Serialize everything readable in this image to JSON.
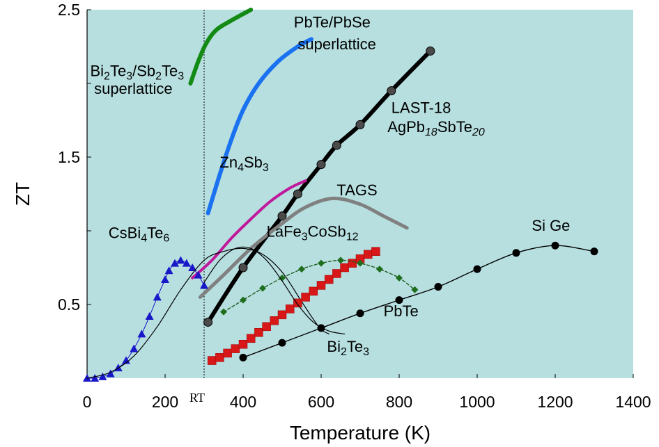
{
  "chart_data": {
    "type": "line",
    "title": "",
    "xlabel": "Temperature (K)",
    "ylabel": "ZT",
    "xlim": [
      0,
      1400
    ],
    "ylim": [
      0,
      2.5
    ],
    "xticks": [
      "0",
      "200",
      "400",
      "600",
      "800",
      "1000",
      "1200",
      "1400"
    ],
    "yticks": [
      "0.5",
      "1.5",
      "2.5"
    ],
    "rt_label": "RT",
    "rt_x": 300,
    "grid": false,
    "background_color": "#b7dfe0",
    "series": [
      {
        "name": "Bi2Te3/Sb2Te3 superlattice",
        "color": "#138a13",
        "style": "line",
        "width": 6,
        "x": [
          265,
          285,
          305,
          330,
          365,
          420
        ],
        "y": [
          2.0,
          2.15,
          2.27,
          2.36,
          2.42,
          2.5
        ]
      },
      {
        "name": "PbTe/PbSe superlattice",
        "color": "#1a72f0",
        "style": "line",
        "width": 6,
        "x": [
          310,
          340,
          370,
          400,
          440,
          490,
          540,
          575
        ],
        "y": [
          1.12,
          1.38,
          1.62,
          1.82,
          2.0,
          2.15,
          2.25,
          2.3
        ]
      },
      {
        "name": "LAST-18 AgPb18SbTe20",
        "color": "#000000",
        "style": "line-dots",
        "width": 6,
        "x": [
          310,
          400,
          500,
          540,
          600,
          640,
          700,
          780,
          880
        ],
        "y": [
          0.38,
          0.75,
          1.1,
          1.25,
          1.45,
          1.58,
          1.72,
          1.95,
          2.22
        ]
      },
      {
        "name": "Zn4Sb3",
        "color": "#c0189b",
        "style": "line",
        "width": 4,
        "x": [
          270,
          320,
          370,
          420,
          470,
          520,
          560
        ],
        "y": [
          0.68,
          0.8,
          0.95,
          1.08,
          1.2,
          1.29,
          1.34
        ]
      },
      {
        "name": "TAGS",
        "color": "#808080",
        "style": "line",
        "width": 5,
        "x": [
          290,
          350,
          420,
          500,
          560,
          630,
          700,
          760,
          820
        ],
        "y": [
          0.55,
          0.7,
          0.88,
          1.05,
          1.16,
          1.22,
          1.18,
          1.1,
          1.02
        ]
      },
      {
        "name": "CsBi4Te6",
        "color": "#1818c8",
        "style": "triangles",
        "x": [
          0,
          20,
          40,
          60,
          80,
          100,
          120,
          140,
          160,
          180,
          200,
          210,
          225,
          240,
          255,
          270,
          285,
          300
        ],
        "y": [
          0.0,
          0.0,
          0.01,
          0.03,
          0.07,
          0.12,
          0.2,
          0.3,
          0.42,
          0.55,
          0.67,
          0.73,
          0.78,
          0.8,
          0.78,
          0.75,
          0.7,
          0.63
        ]
      },
      {
        "name": "CsBi4Te6 (thin curve)",
        "color": "#000000",
        "style": "thin-line",
        "x": [
          0,
          60,
          120,
          180,
          240,
          300,
          350,
          400,
          450,
          500,
          550,
          580,
          600,
          620
        ],
        "y": [
          0.0,
          0.04,
          0.15,
          0.35,
          0.6,
          0.8,
          0.86,
          0.88,
          0.84,
          0.72,
          0.52,
          0.4,
          0.33,
          0.3
        ]
      },
      {
        "name": "LaFe3CoSb12",
        "color": "#d81818",
        "style": "squares",
        "x": [
          320,
          340,
          360,
          380,
          400,
          420,
          440,
          460,
          480,
          500,
          520,
          540,
          560,
          580,
          600,
          620,
          640,
          660,
          680,
          700,
          720,
          740
        ],
        "y": [
          0.12,
          0.14,
          0.17,
          0.2,
          0.23,
          0.27,
          0.31,
          0.35,
          0.39,
          0.43,
          0.47,
          0.51,
          0.55,
          0.59,
          0.63,
          0.67,
          0.71,
          0.75,
          0.78,
          0.81,
          0.84,
          0.86
        ]
      },
      {
        "name": "PbTe",
        "color": "#1e6e1e",
        "style": "diamonds",
        "x": [
          350,
          400,
          450,
          500,
          550,
          600,
          650,
          700,
          750,
          800,
          840
        ],
        "y": [
          0.45,
          0.53,
          0.61,
          0.68,
          0.74,
          0.78,
          0.8,
          0.78,
          0.74,
          0.68,
          0.6
        ]
      },
      {
        "name": "Bi2Te3",
        "color": "#000000",
        "style": "thin-line",
        "x": [
          300,
          340,
          380,
          420,
          460,
          500,
          540,
          580,
          620,
          660
        ],
        "y": [
          0.65,
          0.8,
          0.88,
          0.88,
          0.8,
          0.66,
          0.5,
          0.38,
          0.32,
          0.3
        ]
      },
      {
        "name": "SiGe",
        "color": "#000000",
        "style": "circles",
        "x": [
          400,
          500,
          600,
          700,
          800,
          900,
          1000,
          1100,
          1200,
          1300
        ],
        "y": [
          0.14,
          0.24,
          0.34,
          0.44,
          0.53,
          0.62,
          0.74,
          0.85,
          0.9,
          0.86
        ]
      }
    ],
    "annotations": [
      {
        "parts": [
          [
            "Bi",
            "n"
          ],
          [
            "2",
            "sub"
          ],
          [
            "Te",
            "n"
          ],
          [
            "3",
            "sub"
          ],
          [
            "/Sb",
            "n"
          ],
          [
            "2",
            "sub"
          ],
          [
            "Te",
            "n"
          ],
          [
            "3",
            "sub"
          ]
        ],
        "x": 8,
        "y": 2.05
      },
      {
        "parts": [
          [
            "superlattice",
            "n"
          ]
        ],
        "x": 18,
        "y": 1.93
      },
      {
        "parts": [
          [
            "PbTe/PbSe",
            "n"
          ]
        ],
        "x": 530,
        "y": 2.38
      },
      {
        "parts": [
          [
            "superlattice",
            "n"
          ]
        ],
        "x": 540,
        "y": 2.23
      },
      {
        "parts": [
          [
            "LAST-18",
            "n"
          ]
        ],
        "x": 780,
        "y": 1.8
      },
      {
        "parts": [
          [
            "AgPb",
            "n"
          ],
          [
            "18",
            "subi"
          ],
          [
            "SbTe",
            "n"
          ],
          [
            "20",
            "subi"
          ]
        ],
        "x": 770,
        "y": 1.67
      },
      {
        "parts": [
          [
            "Zn",
            "n"
          ],
          [
            "4",
            "sub"
          ],
          [
            "Sb",
            "n"
          ],
          [
            "3",
            "sub"
          ]
        ],
        "x": 340,
        "y": 1.43
      },
      {
        "parts": [
          [
            "TAGS",
            "n"
          ]
        ],
        "x": 640,
        "y": 1.24
      },
      {
        "parts": [
          [
            "CsBi",
            "n"
          ],
          [
            "4",
            "sub"
          ],
          [
            "Te",
            "n"
          ],
          [
            "6",
            "sub"
          ]
        ],
        "x": 55,
        "y": 0.95
      },
      {
        "parts": [
          [
            "LaFe",
            "n"
          ],
          [
            "3",
            "sub"
          ],
          [
            "CoSb",
            "n"
          ],
          [
            "12",
            "sub"
          ]
        ],
        "x": 460,
        "y": 0.96
      },
      {
        "parts": [
          [
            "Si Ge",
            "n"
          ]
        ],
        "x": 1140,
        "y": 1.0
      },
      {
        "parts": [
          [
            "PbTe",
            "n"
          ]
        ],
        "x": 760,
        "y": 0.42
      },
      {
        "parts": [
          [
            "Bi",
            "n"
          ],
          [
            "2",
            "sub"
          ],
          [
            "Te",
            "n"
          ],
          [
            "3",
            "sub"
          ]
        ],
        "x": 615,
        "y": 0.18
      }
    ]
  }
}
